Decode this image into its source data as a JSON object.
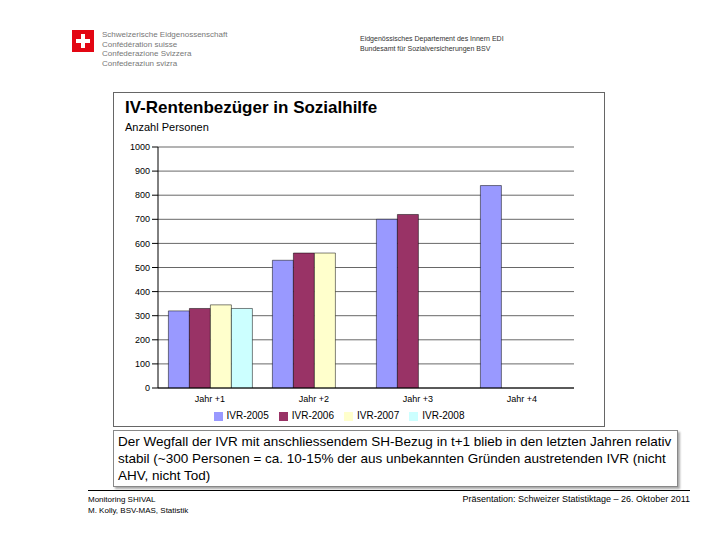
{
  "header": {
    "left": [
      "Schweizerische Eidgenossenschaft",
      "Confédération suisse",
      "Confederazione Svizzera",
      "Confederaziun svizra"
    ],
    "right": [
      "Eidgenössisches Departement des Innern EDI",
      "Bundesamt für Sozialversicherungen BSV"
    ]
  },
  "chart_data": {
    "type": "bar",
    "title": "IV-Rentenbezüger in Sozialhilfe",
    "y_label": "Anzahl Personen",
    "categories": [
      "Jahr +1",
      "Jahr +2",
      "Jahr +3",
      "Jahr +4"
    ],
    "series": [
      {
        "name": "IVR-2005",
        "color": "#9999ff",
        "values": [
          320,
          530,
          700,
          840
        ]
      },
      {
        "name": "IVR-2006",
        "color": "#993366",
        "values": [
          330,
          560,
          720,
          null
        ]
      },
      {
        "name": "IVR-2007",
        "color": "#ffffcc",
        "values": [
          345,
          560,
          null,
          null
        ]
      },
      {
        "name": "IVR-2008",
        "color": "#ccffff",
        "values": [
          330,
          null,
          null,
          null
        ]
      }
    ],
    "ylim": [
      0,
      1000
    ],
    "yticks": [
      0,
      100,
      200,
      300,
      400,
      500,
      600,
      700,
      800,
      900,
      1000
    ],
    "grid": true,
    "legend": "bottom"
  },
  "caption": "Der Wegfall der IVR mit anschliessendem SH-Bezug in t+1 blieb in den letzten Jahren relativ stabil (~300 Personen = ca. 10-15% der aus unbekannten Gründen austretenden IVR (nicht AHV, nicht Tod)",
  "footer": {
    "left": [
      "Monitoring SHIVAL",
      "M. Kolly, BSV-MAS, Statistik"
    ],
    "right": "Präsentation: Schweizer Statistiktage – 26. Oktober 2011"
  }
}
